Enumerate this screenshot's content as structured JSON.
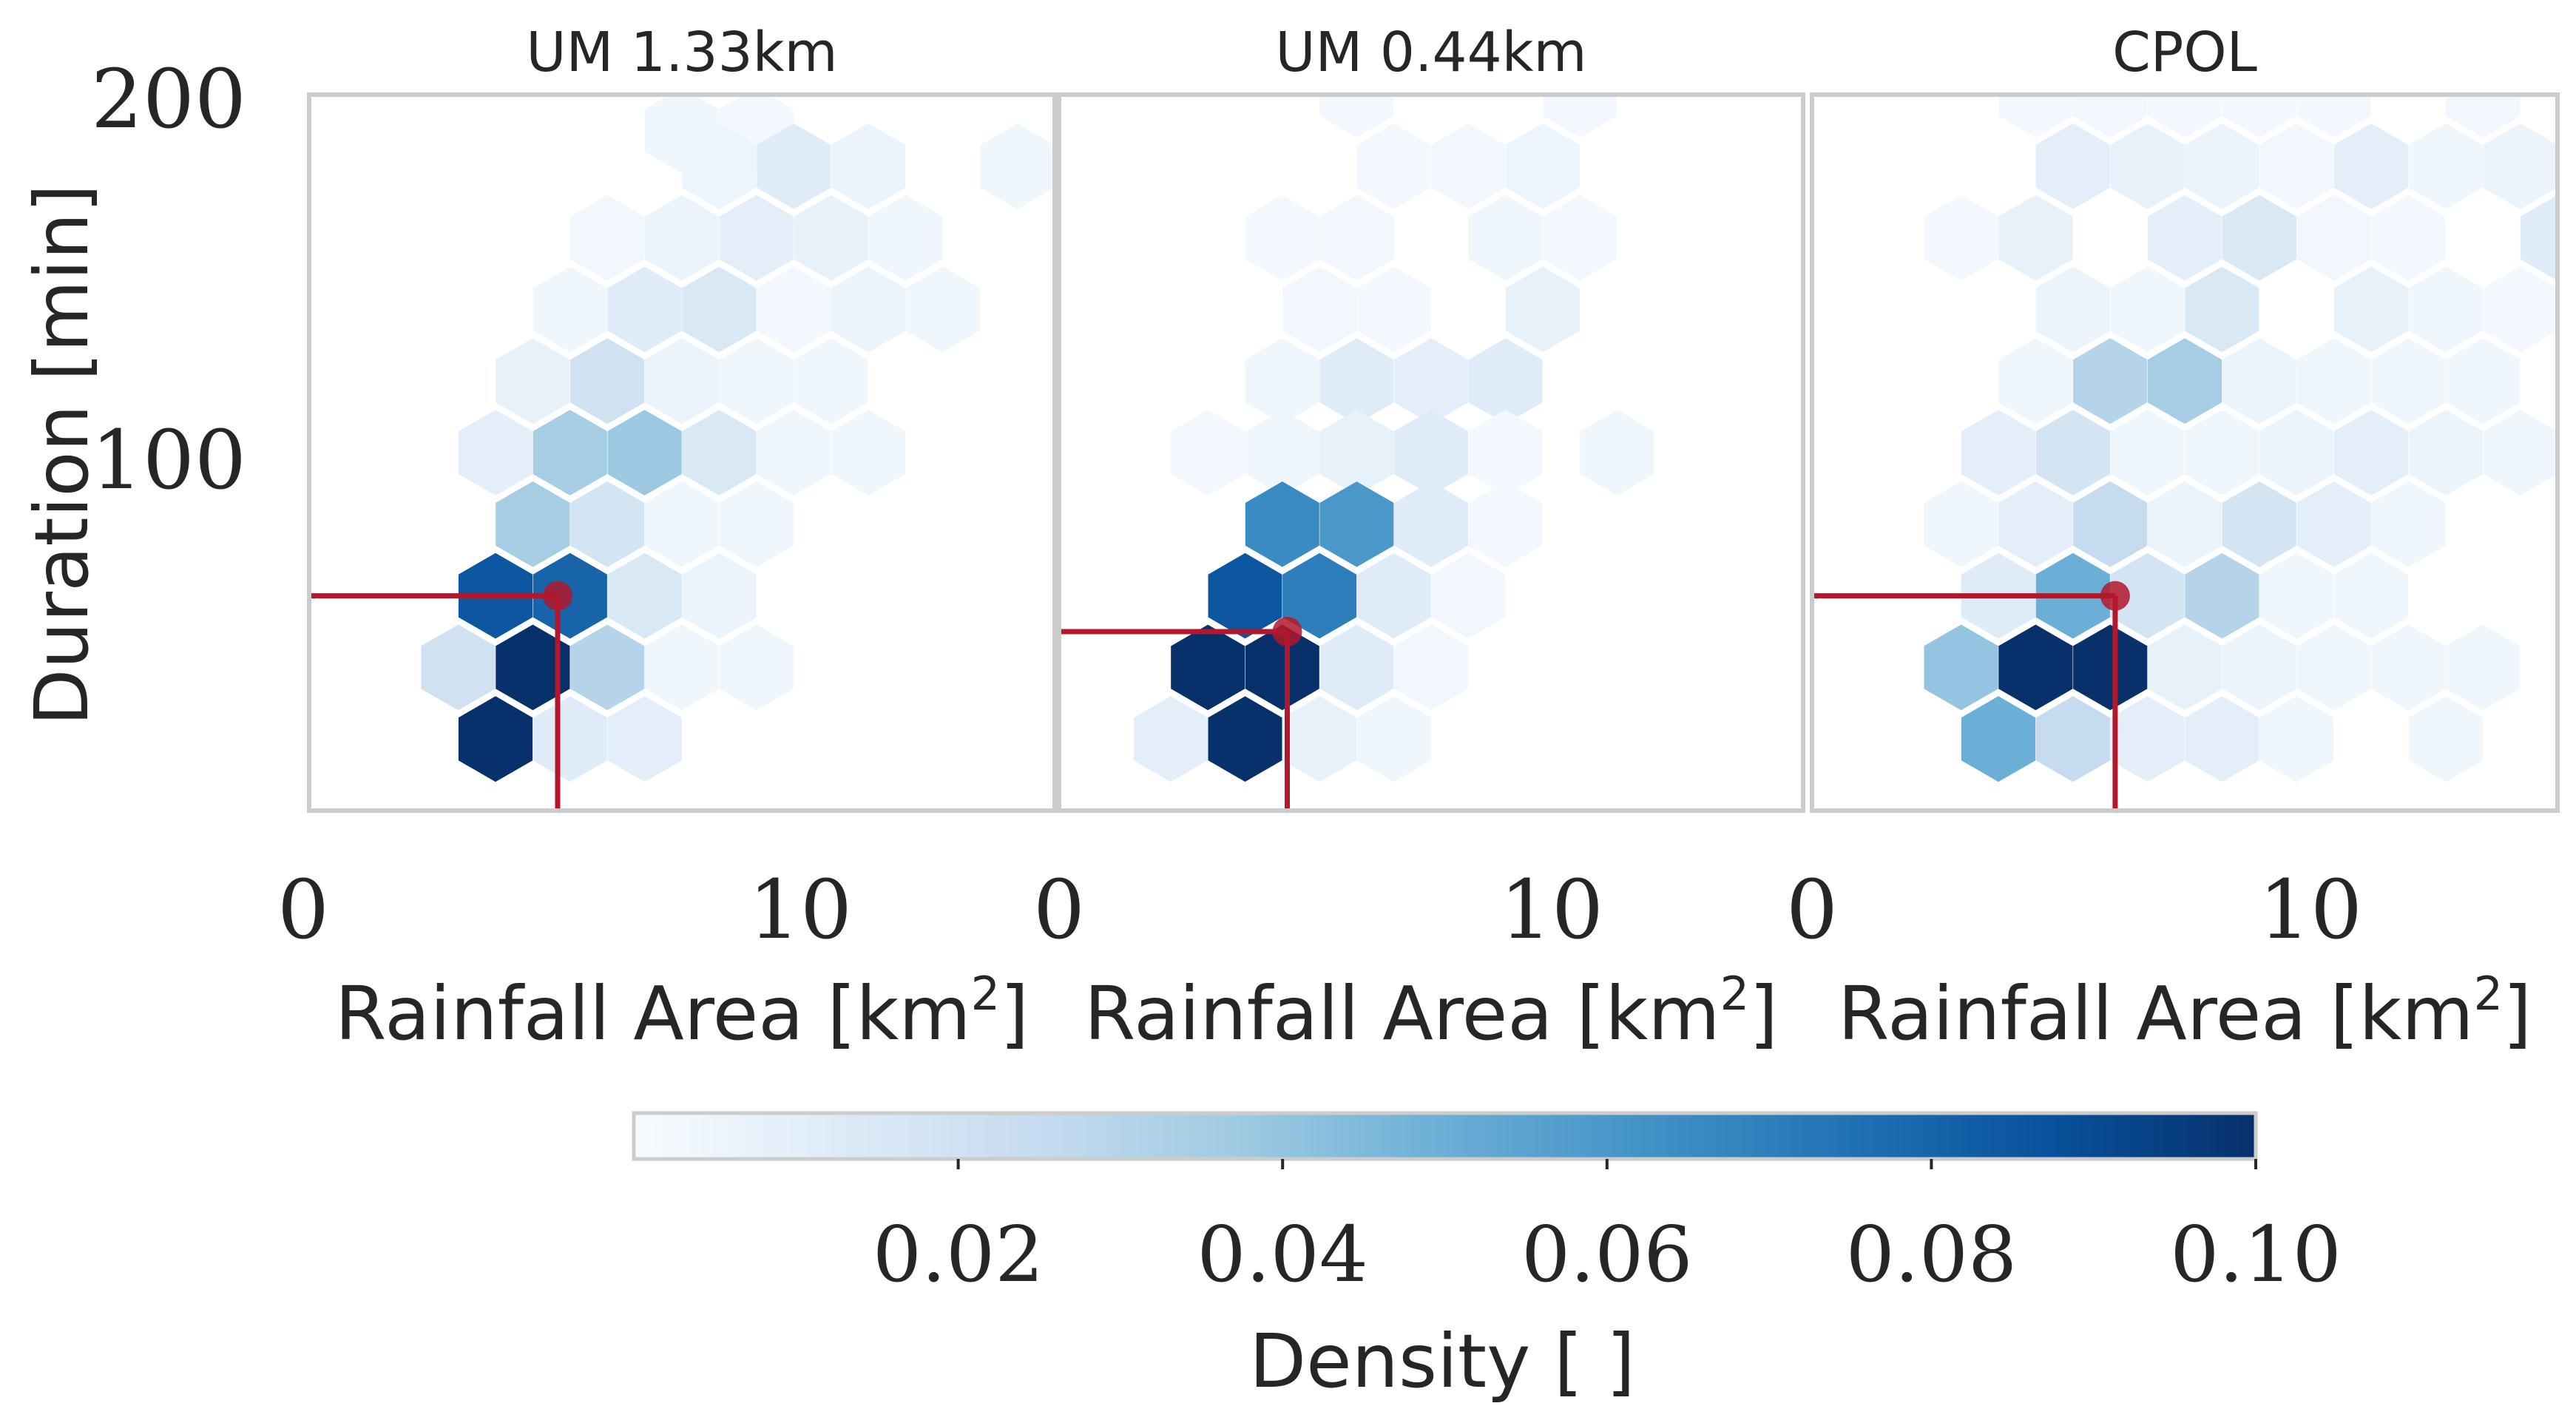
{
  "figure": {
    "colorbar": {
      "label": "Density [ ]",
      "min": 0,
      "max": 0.1,
      "ticks": [
        "0.02",
        "0.04",
        "0.06",
        "0.08",
        "0.10"
      ],
      "colormap": [
        "#f7fbff",
        "#deebf7",
        "#c6dbef",
        "#9ecae1",
        "#6baed6",
        "#4292c6",
        "#2171b5",
        "#08519c",
        "#08306b"
      ]
    },
    "marker_color": "#b2182b"
  },
  "chart_data": [
    {
      "type": "heatmap",
      "subtype": "hexbin",
      "title": "UM 1.33km",
      "xlabel": "Rainfall Area [km²]",
      "ylabel": "Duration [min]",
      "xlim": [
        0,
        15
      ],
      "ylim": [
        0,
        200
      ],
      "xticks": [
        "0",
        "10"
      ],
      "yticks": [
        "100",
        "200"
      ],
      "reference_point": {
        "x": 5.0,
        "y": 60
      },
      "hexagons": [
        {
          "x": 7.5,
          "y": 190,
          "v": 0.004
        },
        {
          "x": 9.0,
          "y": 190,
          "v": 0.002
        },
        {
          "x": 14.25,
          "y": 180,
          "v": 0.004
        },
        {
          "x": 8.25,
          "y": 180,
          "v": 0.005
        },
        {
          "x": 9.75,
          "y": 180,
          "v": 0.012
        },
        {
          "x": 11.25,
          "y": 180,
          "v": 0.006
        },
        {
          "x": 6.0,
          "y": 160,
          "v": 0.003
        },
        {
          "x": 7.5,
          "y": 160,
          "v": 0.006
        },
        {
          "x": 9.0,
          "y": 160,
          "v": 0.01
        },
        {
          "x": 10.5,
          "y": 160,
          "v": 0.008
        },
        {
          "x": 12.0,
          "y": 160,
          "v": 0.004
        },
        {
          "x": 5.25,
          "y": 140,
          "v": 0.004
        },
        {
          "x": 6.75,
          "y": 140,
          "v": 0.012
        },
        {
          "x": 8.25,
          "y": 140,
          "v": 0.015
        },
        {
          "x": 9.75,
          "y": 140,
          "v": 0.002
        },
        {
          "x": 11.25,
          "y": 140,
          "v": 0.006
        },
        {
          "x": 12.75,
          "y": 140,
          "v": 0.004
        },
        {
          "x": 4.5,
          "y": 120,
          "v": 0.008
        },
        {
          "x": 6.0,
          "y": 120,
          "v": 0.02
        },
        {
          "x": 7.5,
          "y": 120,
          "v": 0.006
        },
        {
          "x": 9.0,
          "y": 120,
          "v": 0.004
        },
        {
          "x": 10.5,
          "y": 120,
          "v": 0.004
        },
        {
          "x": 3.75,
          "y": 100,
          "v": 0.01
        },
        {
          "x": 5.25,
          "y": 100,
          "v": 0.035
        },
        {
          "x": 6.75,
          "y": 100,
          "v": 0.038
        },
        {
          "x": 8.25,
          "y": 100,
          "v": 0.015
        },
        {
          "x": 9.75,
          "y": 100,
          "v": 0.004
        },
        {
          "x": 11.25,
          "y": 100,
          "v": 0.004
        },
        {
          "x": 4.5,
          "y": 80,
          "v": 0.035
        },
        {
          "x": 6.0,
          "y": 80,
          "v": 0.018
        },
        {
          "x": 7.5,
          "y": 80,
          "v": 0.004
        },
        {
          "x": 9.0,
          "y": 80,
          "v": 0.004
        },
        {
          "x": 3.75,
          "y": 60,
          "v": 0.085
        },
        {
          "x": 5.25,
          "y": 60,
          "v": 0.08
        },
        {
          "x": 6.75,
          "y": 60,
          "v": 0.015
        },
        {
          "x": 8.25,
          "y": 60,
          "v": 0.006
        },
        {
          "x": 3.0,
          "y": 40,
          "v": 0.02
        },
        {
          "x": 4.5,
          "y": 40,
          "v": 0.1
        },
        {
          "x": 6.0,
          "y": 40,
          "v": 0.03
        },
        {
          "x": 7.5,
          "y": 40,
          "v": 0.004
        },
        {
          "x": 9.0,
          "y": 40,
          "v": 0.004
        },
        {
          "x": 3.75,
          "y": 20,
          "v": 0.1
        },
        {
          "x": 5.25,
          "y": 20,
          "v": 0.012
        },
        {
          "x": 6.75,
          "y": 20,
          "v": 0.01
        }
      ]
    },
    {
      "type": "heatmap",
      "subtype": "hexbin",
      "title": "UM 0.44km",
      "xlabel": "Rainfall Area [km²]",
      "ylabel": "",
      "xlim": [
        0,
        15
      ],
      "ylim": [
        0,
        200
      ],
      "xticks": [
        "0",
        "10"
      ],
      "yticks": [],
      "reference_point": {
        "x": 4.6,
        "y": 50
      },
      "hexagons": [
        {
          "x": 6.0,
          "y": 200,
          "v": 0.002
        },
        {
          "x": 10.5,
          "y": 200,
          "v": 0.002
        },
        {
          "x": 6.75,
          "y": 180,
          "v": 0.002
        },
        {
          "x": 8.25,
          "y": 180,
          "v": 0.003
        },
        {
          "x": 9.75,
          "y": 180,
          "v": 0.005
        },
        {
          "x": 4.5,
          "y": 160,
          "v": 0.002
        },
        {
          "x": 6.0,
          "y": 160,
          "v": 0.003
        },
        {
          "x": 9.0,
          "y": 160,
          "v": 0.004
        },
        {
          "x": 10.5,
          "y": 160,
          "v": 0.002
        },
        {
          "x": 5.25,
          "y": 140,
          "v": 0.003
        },
        {
          "x": 6.75,
          "y": 140,
          "v": 0.002
        },
        {
          "x": 9.75,
          "y": 140,
          "v": 0.008
        },
        {
          "x": 4.5,
          "y": 120,
          "v": 0.004
        },
        {
          "x": 6.0,
          "y": 120,
          "v": 0.012
        },
        {
          "x": 7.5,
          "y": 120,
          "v": 0.01
        },
        {
          "x": 9.0,
          "y": 120,
          "v": 0.012
        },
        {
          "x": 3.0,
          "y": 100,
          "v": 0.002
        },
        {
          "x": 4.5,
          "y": 100,
          "v": 0.004
        },
        {
          "x": 6.0,
          "y": 100,
          "v": 0.008
        },
        {
          "x": 7.5,
          "y": 100,
          "v": 0.012
        },
        {
          "x": 9.0,
          "y": 100,
          "v": 0.002
        },
        {
          "x": 11.25,
          "y": 100,
          "v": 0.004
        },
        {
          "x": 4.5,
          "y": 80,
          "v": 0.065
        },
        {
          "x": 6.0,
          "y": 80,
          "v": 0.06
        },
        {
          "x": 7.5,
          "y": 80,
          "v": 0.012
        },
        {
          "x": 9.0,
          "y": 80,
          "v": 0.002
        },
        {
          "x": 3.75,
          "y": 60,
          "v": 0.085
        },
        {
          "x": 5.25,
          "y": 60,
          "v": 0.07
        },
        {
          "x": 6.75,
          "y": 60,
          "v": 0.012
        },
        {
          "x": 8.25,
          "y": 60,
          "v": 0.003
        },
        {
          "x": 3.0,
          "y": 40,
          "v": 0.1
        },
        {
          "x": 4.5,
          "y": 40,
          "v": 0.1
        },
        {
          "x": 6.0,
          "y": 40,
          "v": 0.012
        },
        {
          "x": 7.5,
          "y": 40,
          "v": 0.003
        },
        {
          "x": 2.25,
          "y": 20,
          "v": 0.01
        },
        {
          "x": 3.75,
          "y": 20,
          "v": 0.1
        },
        {
          "x": 5.25,
          "y": 20,
          "v": 0.008
        },
        {
          "x": 6.75,
          "y": 20,
          "v": 0.004
        }
      ]
    },
    {
      "type": "heatmap",
      "subtype": "hexbin",
      "title": "CPOL",
      "xlabel": "Rainfall Area [km²]",
      "ylabel": "",
      "xlim": [
        0,
        15
      ],
      "ylim": [
        0,
        200
      ],
      "xticks": [
        "0",
        "10"
      ],
      "yticks": [],
      "reference_point": {
        "x": 6.1,
        "y": 60
      },
      "hexagons": [
        {
          "x": 4.5,
          "y": 200,
          "v": 0.002
        },
        {
          "x": 6.0,
          "y": 200,
          "v": 0.003
        },
        {
          "x": 7.5,
          "y": 200,
          "v": 0.002
        },
        {
          "x": 9.0,
          "y": 200,
          "v": 0.002
        },
        {
          "x": 10.5,
          "y": 200,
          "v": 0.002
        },
        {
          "x": 13.5,
          "y": 200,
          "v": 0.003
        },
        {
          "x": 5.25,
          "y": 180,
          "v": 0.01
        },
        {
          "x": 6.75,
          "y": 180,
          "v": 0.008
        },
        {
          "x": 8.25,
          "y": 180,
          "v": 0.006
        },
        {
          "x": 9.75,
          "y": 180,
          "v": 0.003
        },
        {
          "x": 11.25,
          "y": 180,
          "v": 0.01
        },
        {
          "x": 12.75,
          "y": 180,
          "v": 0.004
        },
        {
          "x": 14.25,
          "y": 180,
          "v": 0.006
        },
        {
          "x": 3.0,
          "y": 160,
          "v": 0.002
        },
        {
          "x": 4.5,
          "y": 160,
          "v": 0.008
        },
        {
          "x": 7.5,
          "y": 160,
          "v": 0.01
        },
        {
          "x": 9.0,
          "y": 160,
          "v": 0.015
        },
        {
          "x": 10.5,
          "y": 160,
          "v": 0.003
        },
        {
          "x": 12.0,
          "y": 160,
          "v": 0.002
        },
        {
          "x": 15.0,
          "y": 160,
          "v": 0.012
        },
        {
          "x": 5.25,
          "y": 140,
          "v": 0.006
        },
        {
          "x": 6.75,
          "y": 140,
          "v": 0.004
        },
        {
          "x": 8.25,
          "y": 140,
          "v": 0.015
        },
        {
          "x": 11.25,
          "y": 140,
          "v": 0.008
        },
        {
          "x": 12.75,
          "y": 140,
          "v": 0.004
        },
        {
          "x": 14.25,
          "y": 140,
          "v": 0.002
        },
        {
          "x": 4.5,
          "y": 120,
          "v": 0.004
        },
        {
          "x": 6.0,
          "y": 120,
          "v": 0.03
        },
        {
          "x": 7.5,
          "y": 120,
          "v": 0.035
        },
        {
          "x": 9.0,
          "y": 120,
          "v": 0.006
        },
        {
          "x": 10.5,
          "y": 120,
          "v": 0.004
        },
        {
          "x": 12.0,
          "y": 120,
          "v": 0.004
        },
        {
          "x": 13.5,
          "y": 120,
          "v": 0.004
        },
        {
          "x": 3.75,
          "y": 100,
          "v": 0.01
        },
        {
          "x": 5.25,
          "y": 100,
          "v": 0.018
        },
        {
          "x": 6.75,
          "y": 100,
          "v": 0.004
        },
        {
          "x": 8.25,
          "y": 100,
          "v": 0.004
        },
        {
          "x": 9.75,
          "y": 100,
          "v": 0.006
        },
        {
          "x": 11.25,
          "y": 100,
          "v": 0.01
        },
        {
          "x": 12.75,
          "y": 100,
          "v": 0.006
        },
        {
          "x": 14.25,
          "y": 100,
          "v": 0.004
        },
        {
          "x": 3.0,
          "y": 80,
          "v": 0.004
        },
        {
          "x": 4.5,
          "y": 80,
          "v": 0.01
        },
        {
          "x": 6.0,
          "y": 80,
          "v": 0.025
        },
        {
          "x": 7.5,
          "y": 80,
          "v": 0.006
        },
        {
          "x": 9.0,
          "y": 80,
          "v": 0.018
        },
        {
          "x": 10.5,
          "y": 80,
          "v": 0.01
        },
        {
          "x": 12.0,
          "y": 80,
          "v": 0.004
        },
        {
          "x": 3.75,
          "y": 60,
          "v": 0.012
        },
        {
          "x": 5.25,
          "y": 60,
          "v": 0.05
        },
        {
          "x": 6.75,
          "y": 60,
          "v": 0.018
        },
        {
          "x": 8.25,
          "y": 60,
          "v": 0.03
        },
        {
          "x": 9.75,
          "y": 60,
          "v": 0.004
        },
        {
          "x": 11.25,
          "y": 60,
          "v": 0.004
        },
        {
          "x": 3.0,
          "y": 40,
          "v": 0.04
        },
        {
          "x": 4.5,
          "y": 40,
          "v": 0.1
        },
        {
          "x": 6.0,
          "y": 40,
          "v": 0.1
        },
        {
          "x": 7.5,
          "y": 40,
          "v": 0.008
        },
        {
          "x": 9.0,
          "y": 40,
          "v": 0.006
        },
        {
          "x": 10.5,
          "y": 40,
          "v": 0.004
        },
        {
          "x": 12.0,
          "y": 40,
          "v": 0.004
        },
        {
          "x": 13.5,
          "y": 40,
          "v": 0.004
        },
        {
          "x": 3.75,
          "y": 20,
          "v": 0.05
        },
        {
          "x": 5.25,
          "y": 20,
          "v": 0.025
        },
        {
          "x": 6.75,
          "y": 20,
          "v": 0.01
        },
        {
          "x": 8.25,
          "y": 20,
          "v": 0.01
        },
        {
          "x": 9.75,
          "y": 20,
          "v": 0.004
        },
        {
          "x": 12.75,
          "y": 20,
          "v": 0.004
        }
      ]
    }
  ]
}
